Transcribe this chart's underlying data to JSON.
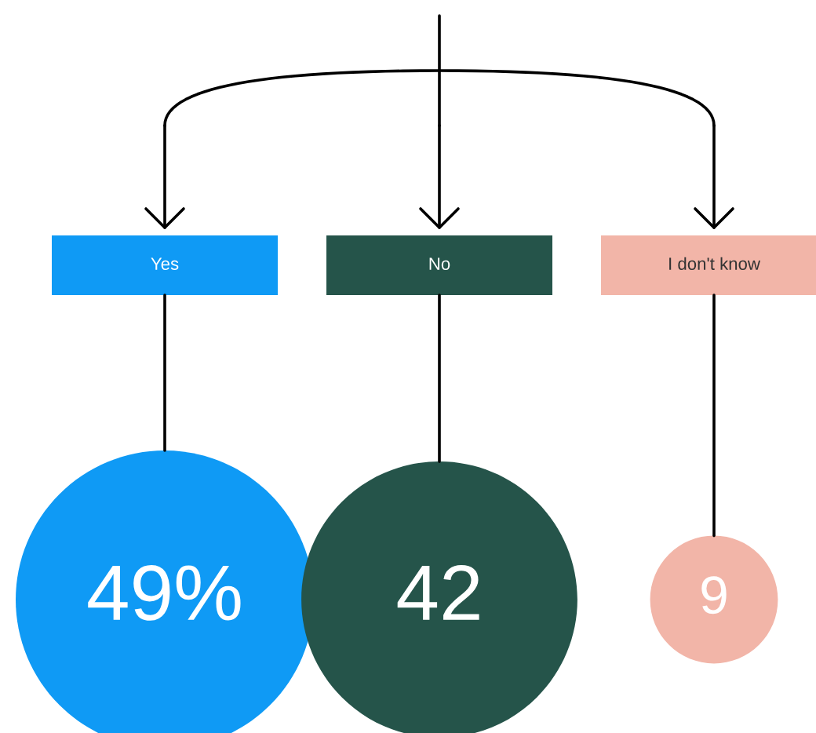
{
  "chart_data": {
    "type": "other",
    "categories": [
      "Yes",
      "No",
      "I don't know"
    ],
    "values": [
      49,
      42,
      9
    ],
    "value_labels": [
      "49%",
      "42",
      "9"
    ],
    "colors": [
      "#0f9af5",
      "#25544a",
      "#f2b5a8"
    ]
  }
}
